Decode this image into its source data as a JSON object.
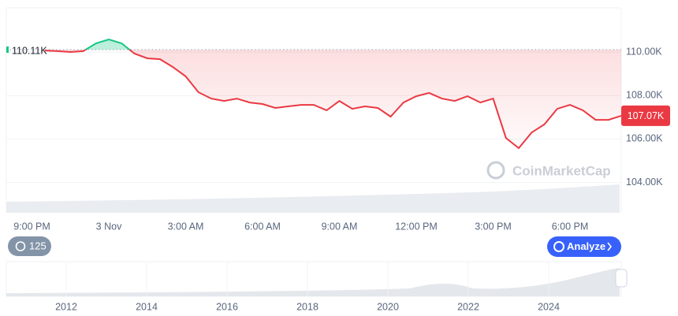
{
  "chart_data": {
    "type": "line",
    "categories": [
      null,
      null,
      "9:00 PM",
      null,
      null,
      null,
      null,
      null,
      "3 Nov",
      null,
      null,
      null,
      null,
      null,
      "3:00 AM",
      null,
      null,
      null,
      null,
      null,
      "6:00 AM",
      null,
      null,
      null,
      null,
      null,
      "9:00 AM",
      null,
      null,
      null,
      null,
      null,
      "12:00 PM",
      null,
      null,
      null,
      null,
      null,
      "3:00 PM",
      null,
      null,
      null,
      null,
      null,
      "6:00 PM",
      null,
      null,
      null,
      null
    ],
    "values": [
      null,
      null,
      null,
      110.07,
      110.04,
      110.0,
      110.04,
      110.4,
      110.58,
      110.4,
      109.93,
      109.71,
      109.67,
      109.31,
      108.88,
      108.15,
      107.86,
      107.75,
      107.86,
      107.68,
      107.61,
      107.43,
      107.5,
      107.57,
      107.57,
      107.32,
      107.75,
      107.39,
      107.5,
      107.43,
      107.03,
      107.68,
      107.97,
      108.12,
      107.86,
      107.75,
      107.97,
      107.68,
      107.86,
      106.05,
      105.58,
      106.3,
      106.67,
      107.39,
      107.57,
      107.32,
      106.88,
      106.88,
      107.07
    ],
    "color": "#ea3943",
    "color_above": "#16c784",
    "reference": {
      "value": 110.11,
      "label": "110.11K"
    },
    "current": {
      "value": 107.07,
      "label": "107.07K"
    },
    "ylim": [
      102.61,
      112.03
    ],
    "yticks": [
      {
        "value": 104,
        "label": "104.00K"
      },
      {
        "value": 106,
        "label": "106.00K"
      },
      {
        "value": 108,
        "label": "108.00K"
      },
      {
        "value": 110,
        "label": "110.00K"
      }
    ],
    "grid": true,
    "watermark": "CoinMarketCap",
    "history_badge": "125",
    "analyze_button": "Analyze",
    "overview_labels": [
      "2012",
      "2014",
      "2016",
      "2018",
      "2020",
      "2022",
      "2024"
    ]
  }
}
